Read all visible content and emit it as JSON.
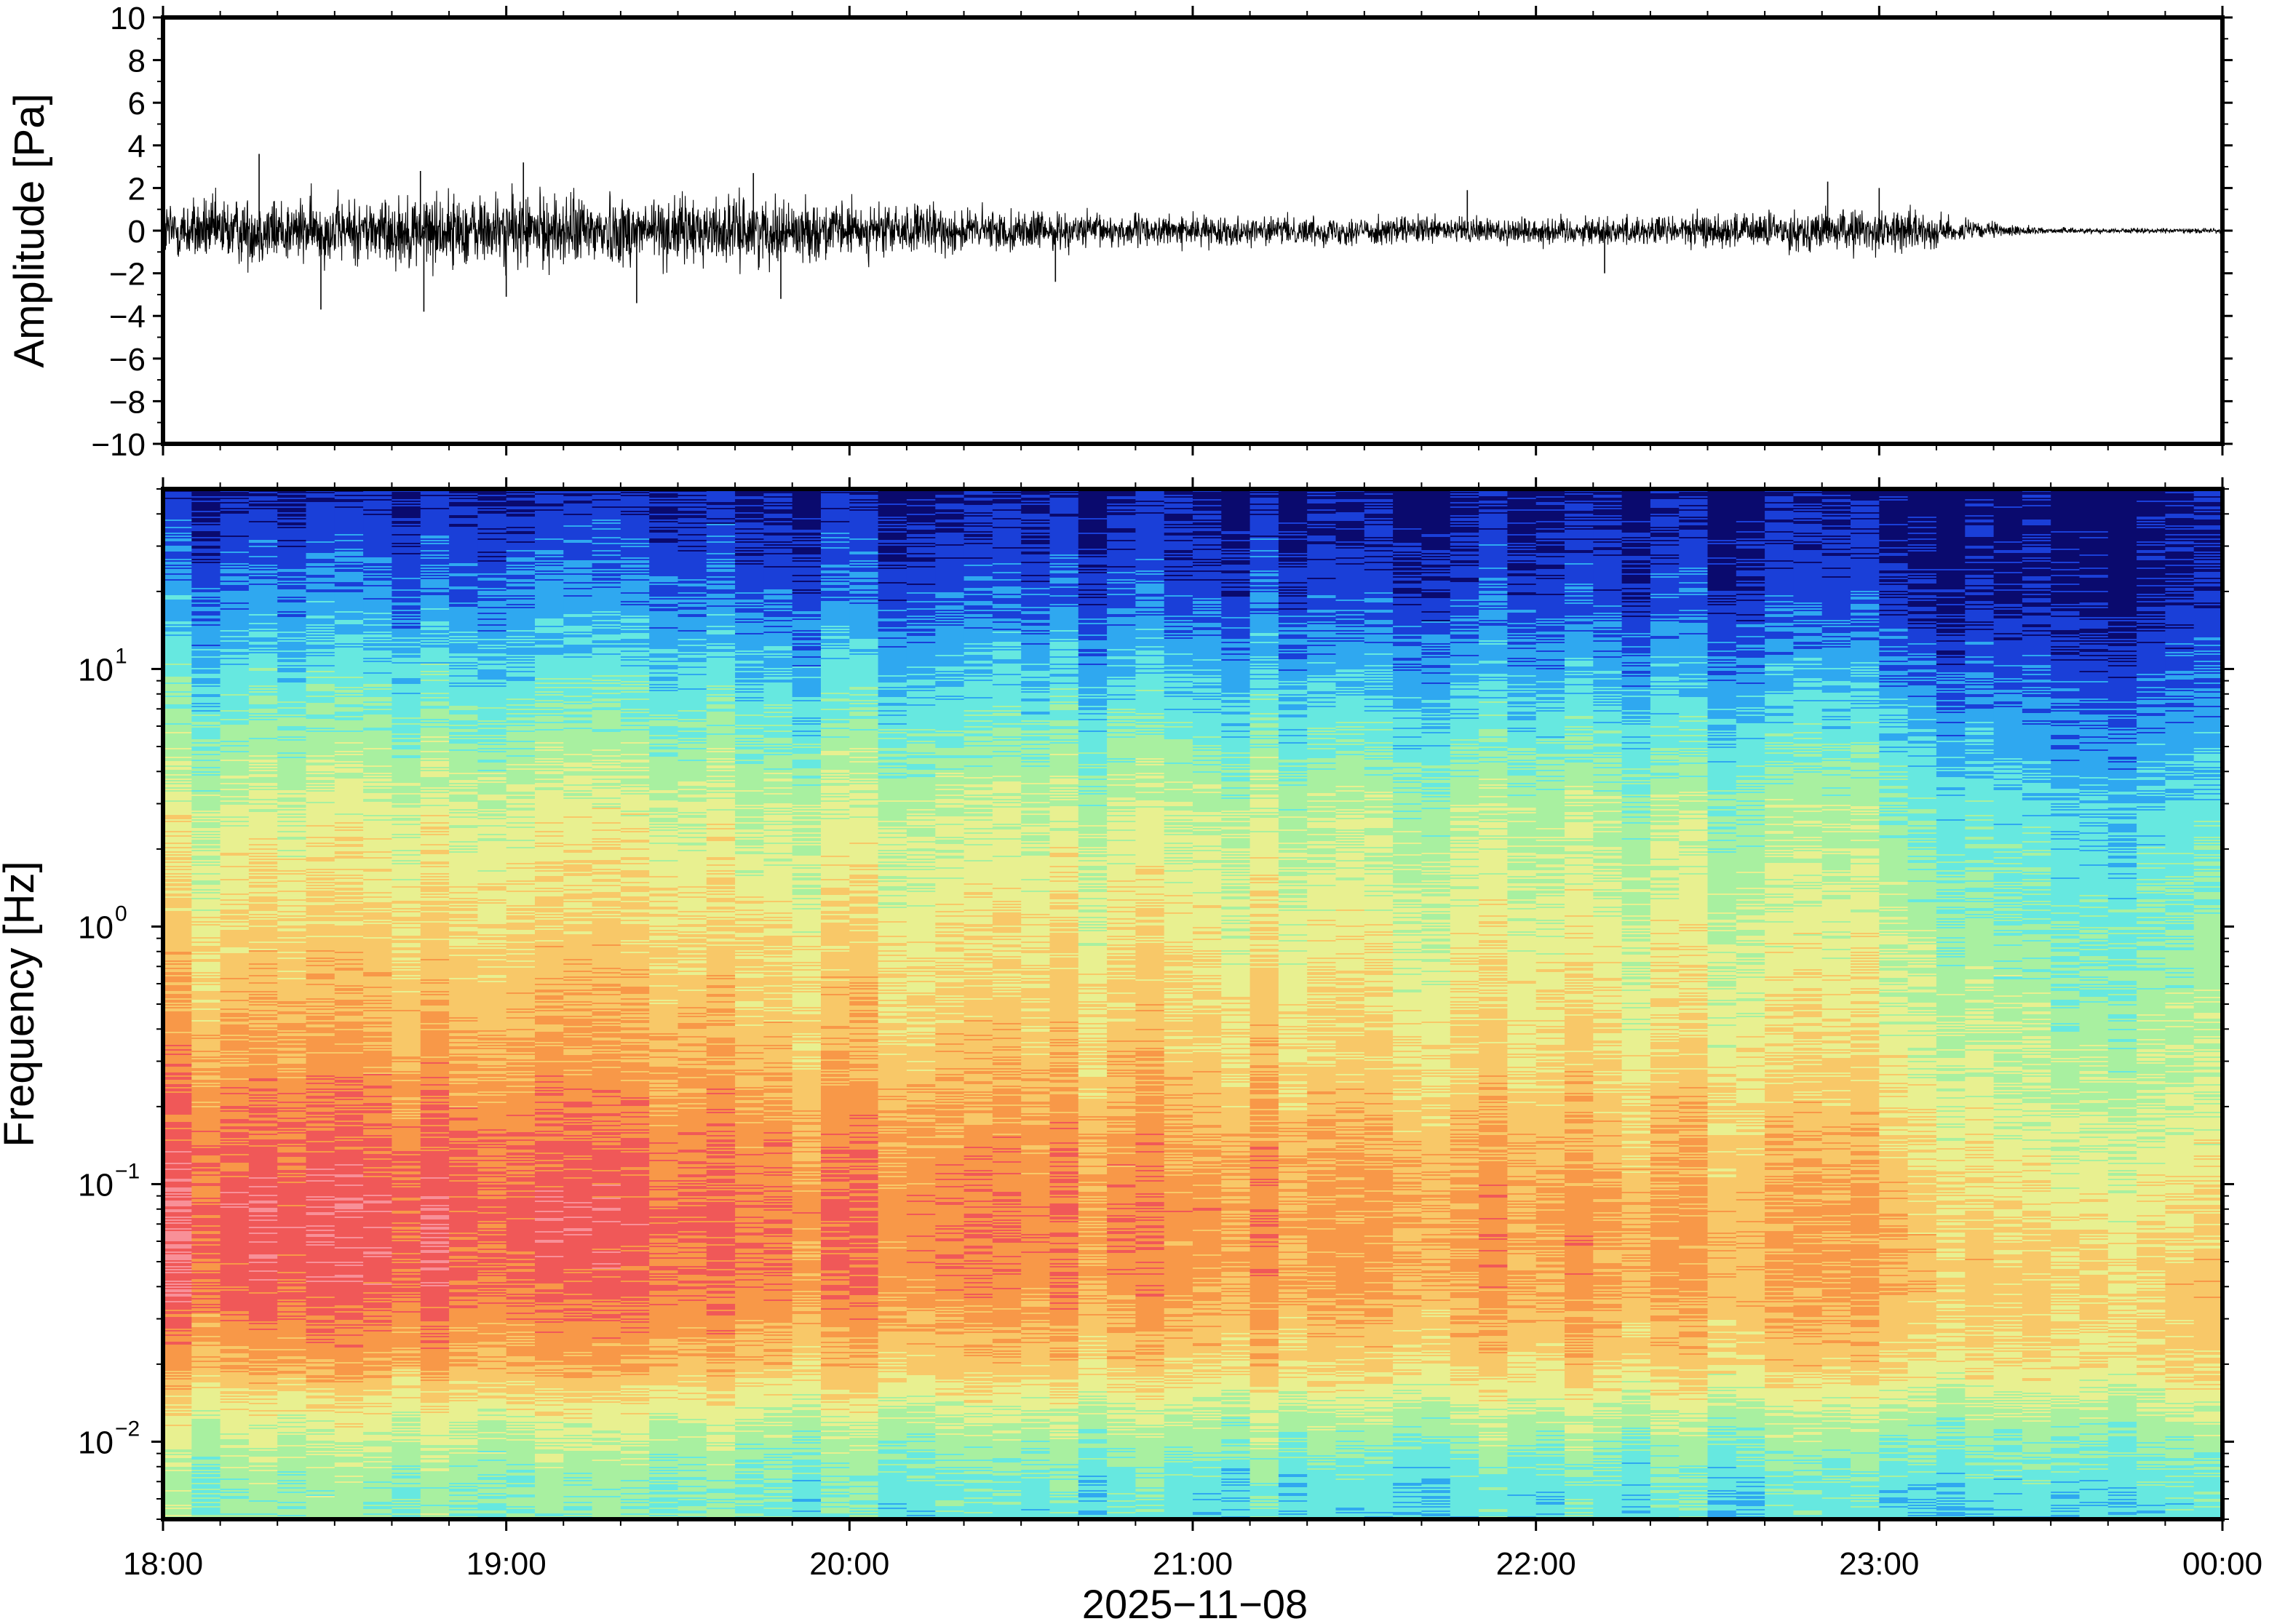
{
  "chart_data": [
    {
      "type": "line",
      "panel": "waveform",
      "ylabel": "Amplitude [Pa]",
      "ylim": [
        -10,
        10
      ],
      "yticks": [
        10,
        8,
        6,
        4,
        2,
        0,
        -2,
        -4,
        -6,
        -8,
        -10
      ],
      "ytick_labels": [
        "10",
        "8",
        "6",
        "4",
        "2",
        "0",
        "−2",
        "−4",
        "−6",
        "−8",
        "−10"
      ],
      "x_range_hours": [
        18,
        24
      ],
      "envelope": {
        "x_hours": [
          18.0,
          18.25,
          18.5,
          18.75,
          19.0,
          19.25,
          19.5,
          19.75,
          20.0,
          20.25,
          20.5,
          20.75,
          21.0,
          21.25,
          21.5,
          21.75,
          22.0,
          22.25,
          22.5,
          22.75,
          23.0,
          23.1,
          23.25,
          23.4,
          23.5,
          23.75,
          24.0
        ],
        "amplitude": [
          1.3,
          1.4,
          1.3,
          1.5,
          1.5,
          1.5,
          1.4,
          1.3,
          1.1,
          1.0,
          0.8,
          0.7,
          0.6,
          0.55,
          0.6,
          0.55,
          0.6,
          0.6,
          0.7,
          0.8,
          0.9,
          0.8,
          0.45,
          0.2,
          0.12,
          0.1,
          0.1
        ]
      },
      "spikes": [
        {
          "x": 18.28,
          "y": 3.6
        },
        {
          "x": 18.46,
          "y": -3.7
        },
        {
          "x": 18.75,
          "y": 2.8
        },
        {
          "x": 18.76,
          "y": -3.8
        },
        {
          "x": 19.05,
          "y": 3.2
        },
        {
          "x": 19.0,
          "y": -3.1
        },
        {
          "x": 19.38,
          "y": -3.4
        },
        {
          "x": 19.8,
          "y": -3.2
        },
        {
          "x": 19.72,
          "y": 2.7
        },
        {
          "x": 20.6,
          "y": -2.4
        },
        {
          "x": 21.8,
          "y": 1.9
        },
        {
          "x": 22.2,
          "y": -2.0
        },
        {
          "x": 22.85,
          "y": 2.3
        },
        {
          "x": 23.0,
          "y": 2.0
        }
      ],
      "line_color": "#000000"
    },
    {
      "type": "heatmap",
      "panel": "spectrogram",
      "ylabel": "Frequency [Hz]",
      "yscale": "log",
      "ylim_hz": [
        0.005,
        50
      ],
      "yticks_hz": [
        0.01,
        0.1,
        1,
        10
      ],
      "ytick_base": [
        "10",
        "10",
        "10",
        "10"
      ],
      "ytick_exp": [
        "−2",
        "−1",
        "0",
        "1"
      ],
      "colormap": "jet",
      "colors": [
        "#0a0a6e",
        "#1a3fd8",
        "#2fa8f0",
        "#66e8e0",
        "#a8f0a0",
        "#e8f090",
        "#f8c868",
        "#f89848",
        "#f05858",
        "#f89098"
      ],
      "x_range_hours": [
        18,
        24
      ],
      "columns": 72,
      "level_profile": {
        "comment_free": true,
        "freq_hz": [
          50,
          20,
          10,
          3,
          1,
          0.3,
          0.15,
          0.08,
          0.04,
          0.02,
          0.012,
          0.007,
          0.005
        ],
        "early_level_18h": [
          0.3,
          1.6,
          2.8,
          4.6,
          5.6,
          6.8,
          7.6,
          8.2,
          8.0,
          6.5,
          4.8,
          3.8,
          3.8
        ],
        "mid_level_21h": [
          0.2,
          1.0,
          2.3,
          4.4,
          5.2,
          5.9,
          6.6,
          7.0,
          6.8,
          5.8,
          4.2,
          3.0,
          2.8
        ],
        "late_level_2330h": [
          0.0,
          0.2,
          1.0,
          2.6,
          3.4,
          4.2,
          4.6,
          5.2,
          5.8,
          5.4,
          4.0,
          3.0,
          2.7
        ]
      }
    }
  ],
  "xaxis": {
    "tick_labels": [
      "18:00",
      "19:00",
      "20:00",
      "21:00",
      "22:00",
      "23:00",
      "00:00"
    ],
    "date_label": "2025−11−08"
  }
}
